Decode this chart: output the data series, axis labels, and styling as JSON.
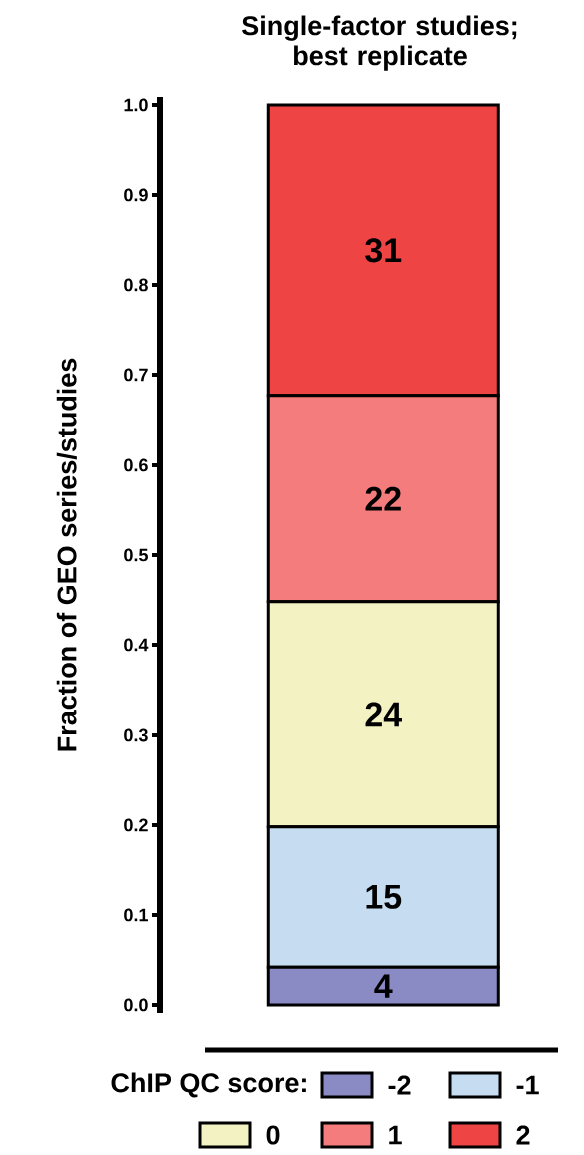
{
  "chart_data": {
    "type": "bar",
    "stacked": true,
    "title": "Single-factor studies; best replicate",
    "ylabel": "Fraction of GEO series/studies",
    "legend_title": "ChIP QC score:",
    "legend": "bottom",
    "categories": [
      null
    ],
    "ylim": [
      0,
      1
    ],
    "yticks": [
      {
        "value": 0,
        "label": "0.0"
      },
      {
        "value": 0.1,
        "label": "0.1"
      },
      {
        "value": 0.2,
        "label": "0.2"
      },
      {
        "value": 0.3,
        "label": "0.3"
      },
      {
        "value": 0.4,
        "label": "0.4"
      },
      {
        "value": 0.5,
        "label": "0.5"
      },
      {
        "value": 0.6,
        "label": "0.6"
      },
      {
        "value": 0.7,
        "label": "0.7"
      },
      {
        "value": 0.8,
        "label": "0.8"
      },
      {
        "value": 0.9,
        "label": "0.9"
      },
      {
        "value": 1,
        "label": "1.0"
      }
    ],
    "series": [
      {
        "name": "-2",
        "color": "#8a8ac4",
        "values": [
          0.042
        ]
      },
      {
        "name": "-1",
        "color": "#c6dcf0",
        "values": [
          0.156
        ]
      },
      {
        "name": "0",
        "color": "#f2f2c2",
        "values": [
          0.25
        ]
      },
      {
        "name": "1",
        "color": "#f47c7c",
        "values": [
          0.229
        ]
      },
      {
        "name": "2",
        "color": "#ee4444",
        "values": [
          0.323
        ]
      }
    ],
    "annotations": [
      "4",
      "15",
      "24",
      "22",
      "31"
    ]
  }
}
